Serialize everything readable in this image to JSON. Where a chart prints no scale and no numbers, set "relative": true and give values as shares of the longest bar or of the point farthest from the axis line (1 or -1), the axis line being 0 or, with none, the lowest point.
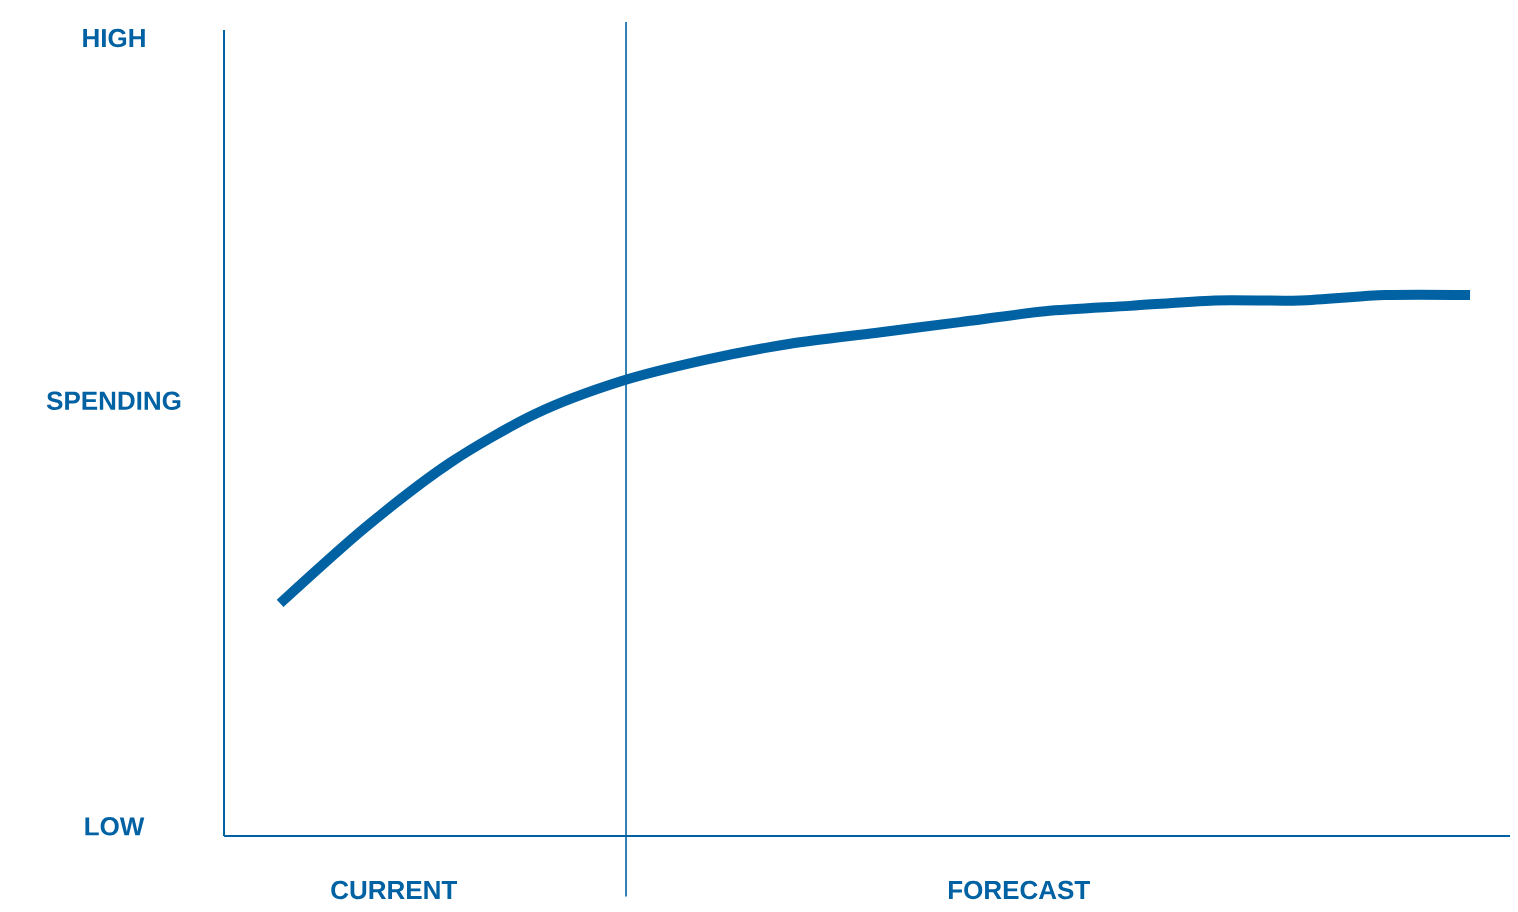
{
  "chart_data": {
    "type": "line",
    "relative": true,
    "ylabel": "SPENDING",
    "categories": [
      null,
      null,
      null,
      null,
      null,
      null,
      null,
      null,
      null,
      null,
      null,
      null,
      null,
      null,
      null
    ],
    "series": [
      {
        "color": "#0062a3",
        "values": [
          0.43,
          0.57,
          0.69,
          0.78,
          0.84,
          0.88,
          0.91,
          0.93,
          0.95,
          0.97,
          0.98,
          0.99,
          0.99,
          1.0,
          1.0
        ]
      }
    ],
    "annotations": [
      "HIGH",
      "LOW",
      "CURRENT",
      "FORECAST"
    ],
    "marker": "none",
    "line_style": "solid"
  }
}
